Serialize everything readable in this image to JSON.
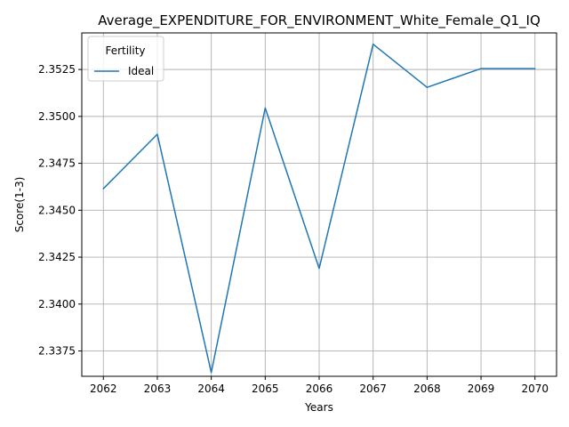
{
  "chart_data": {
    "type": "line",
    "title": "Average_EXPENDITURE_FOR_ENVIRONMENT_White_Female_Q1_IQ",
    "xlabel": "Years",
    "ylabel": "Score(1-3)",
    "x": [
      2062,
      2063,
      2064,
      2065,
      2066,
      2067,
      2068,
      2069,
      2070
    ],
    "x_tick_labels": [
      "2062",
      "2063",
      "2064",
      "2065",
      "2066",
      "2067",
      "2068",
      "2069",
      "2070"
    ],
    "y_ticks": [
      2.3375,
      2.34,
      2.3425,
      2.345,
      2.3475,
      2.35,
      2.3525
    ],
    "y_tick_labels": [
      "2.3375",
      "2.3400",
      "2.3425",
      "2.3450",
      "2.3475",
      "2.3500",
      "2.3525"
    ],
    "xlim": [
      2061.6,
      2070.4
    ],
    "ylim": [
      2.33615,
      2.35445
    ],
    "grid": true,
    "legend": {
      "title": "Fertility",
      "placement": "top-left"
    },
    "series": [
      {
        "name": "Ideal",
        "color": "#1f77b4",
        "values": [
          2.34615,
          2.34905,
          2.33635,
          2.35045,
          2.3419,
          2.35385,
          2.35155,
          2.35255,
          2.35255
        ]
      }
    ]
  }
}
